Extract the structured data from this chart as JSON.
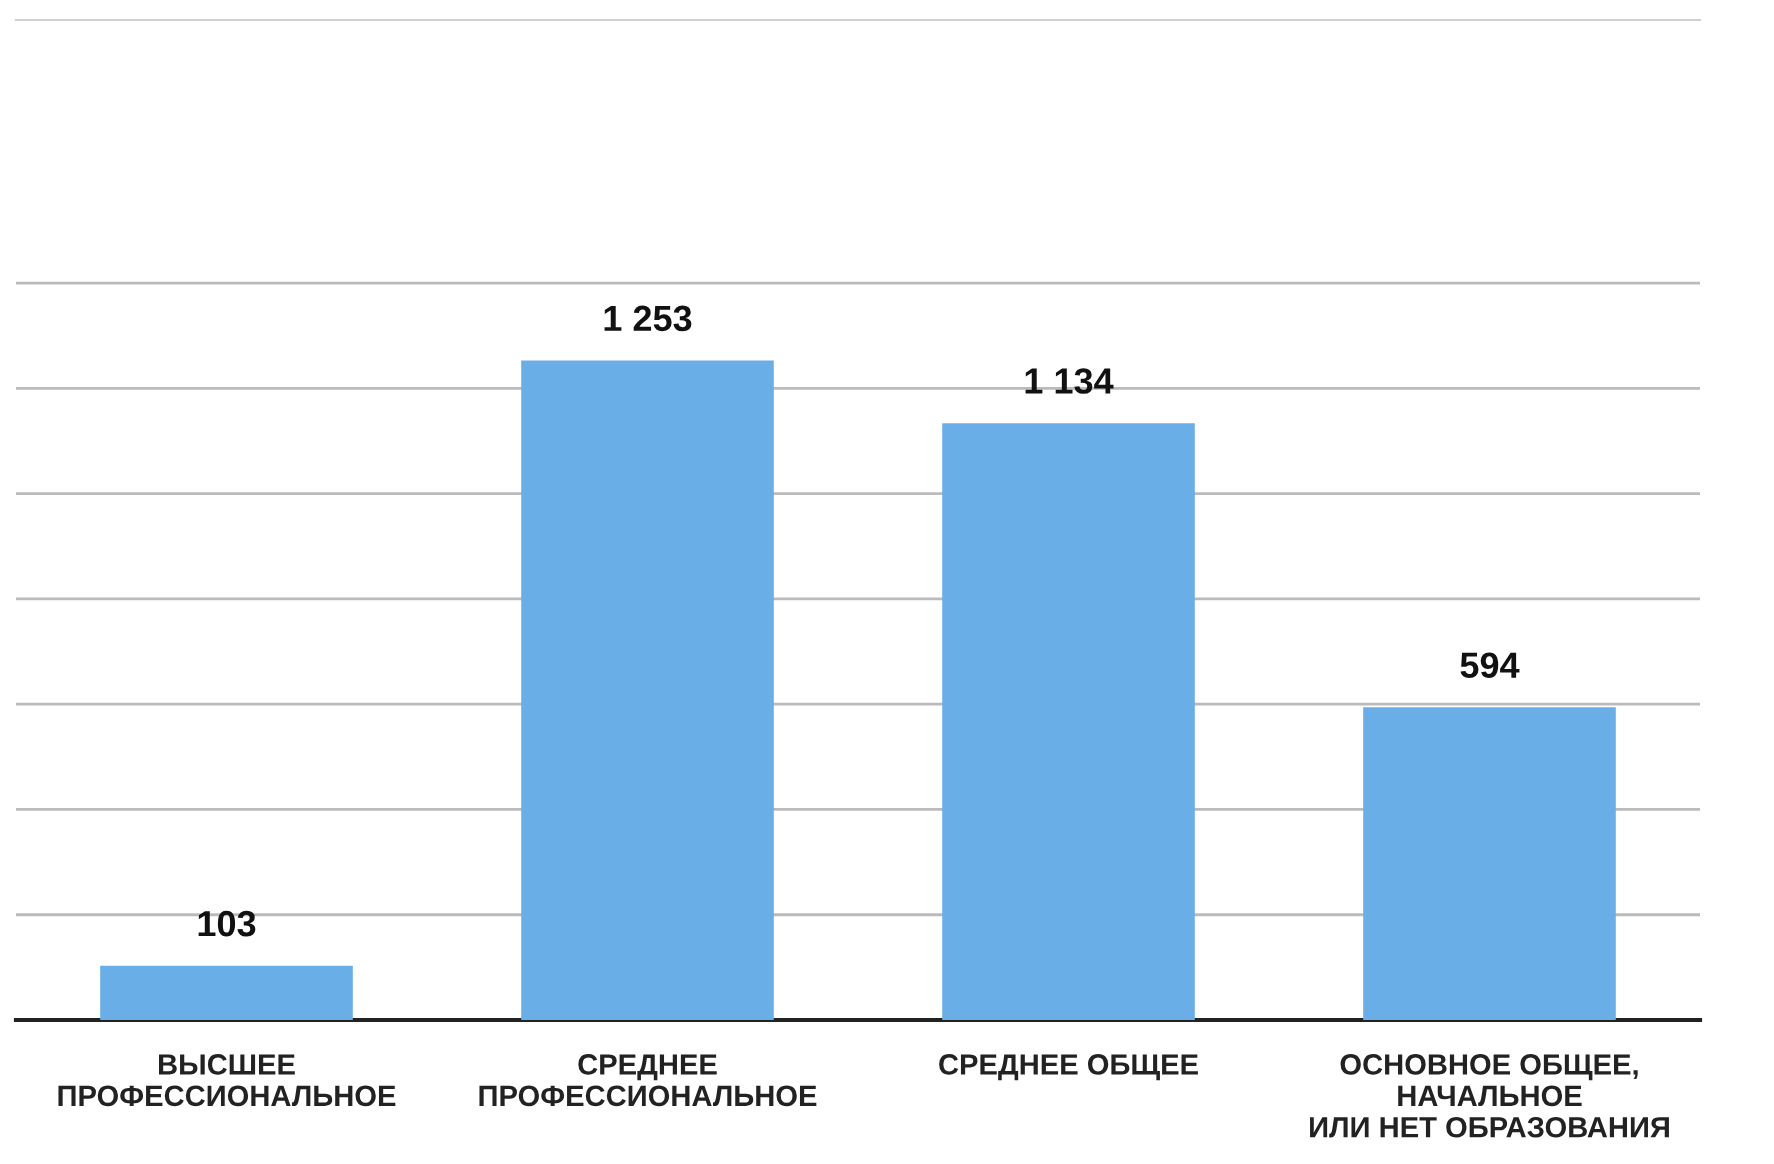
{
  "chart_data": {
    "type": "bar",
    "categories": [
      "ВЫСШЕЕ\nПРОФЕССИОНАЛЬНОЕ",
      "СРЕДНЕЕ\nПРОФЕССИОНАЛЬНОЕ",
      "СРЕДНЕЕ ОБЩЕЕ",
      "ОСНОВНОЕ ОБЩЕЕ,\nНАЧАЛЬНОЕ\nИЛИ НЕТ ОБРАЗОВАНИЯ"
    ],
    "values": [
      103,
      1253,
      1134,
      594
    ],
    "value_labels": [
      "103",
      "1 253",
      "1 134",
      "594"
    ],
    "color": "#6aaee8",
    "ylim": [
      0,
      1900
    ],
    "yticks": [
      {
        "value": 0,
        "label": null
      },
      {
        "value": 200,
        "label": null
      },
      {
        "value": 400,
        "label": null
      },
      {
        "value": 600,
        "label": null
      },
      {
        "value": 800,
        "label": null
      },
      {
        "value": 1000,
        "label": null
      },
      {
        "value": 1200,
        "label": null
      },
      {
        "value": 1400,
        "label": null
      }
    ],
    "tick_labels": "x",
    "grid": "y"
  }
}
